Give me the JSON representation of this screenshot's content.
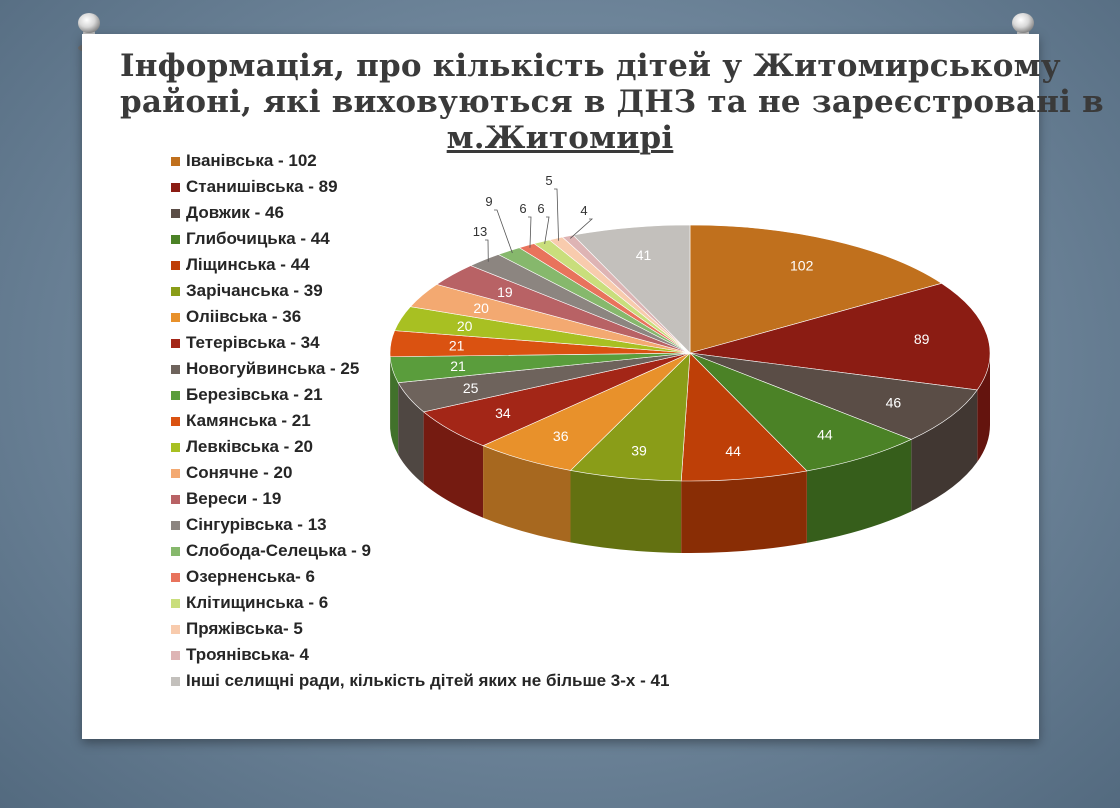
{
  "chart_data": {
    "type": "pie",
    "title": "Інформація, про кількість дітей у Житомирському районі, які виховуються в ДНЗ та не зареєстровані в м.Житомирі",
    "title_lines": [
      "Інформація, про кількість дітей у Житомирському",
      "районі, які виховуються в ДНЗ та не зареєстровані в"
    ],
    "title_city": "м.Житомирі",
    "legend_position": "left",
    "slices": [
      {
        "name": "Іванівська",
        "legend": "Іванівська - 102",
        "value": 102,
        "color": "#c0701d"
      },
      {
        "name": "Станишівська",
        "legend": "Станишівська - 89",
        "value": 89,
        "color": "#8b1c13"
      },
      {
        "name": "Довжик",
        "legend": "Довжик - 46",
        "value": 46,
        "color": "#5a4d46"
      },
      {
        "name": "Глибочицька",
        "legend": "Глибочицька - 44",
        "value": 44,
        "color": "#4b8226"
      },
      {
        "name": "Ліщинська",
        "legend": "Ліщинська - 44",
        "value": 44,
        "color": "#be3f07"
      },
      {
        "name": "Зарічанська",
        "legend": "Зарічанська - 39",
        "value": 39,
        "color": "#8a9d18"
      },
      {
        "name": "Оліівська",
        "legend": "Оліівська - 36",
        "value": 36,
        "color": "#e8912b"
      },
      {
        "name": "Тетерівська",
        "legend": "Тетерівська - 34",
        "value": 34,
        "color": "#a32617"
      },
      {
        "name": "Новогуйвинська",
        "legend": "Новогуйвинська - 25",
        "value": 25,
        "color": "#6e635c"
      },
      {
        "name": "Березівська",
        "legend": "Березівська - 21",
        "value": 21,
        "color": "#5a9d3c"
      },
      {
        "name": "Камянська",
        "legend": "Камянська - 21",
        "value": 21,
        "color": "#da5211"
      },
      {
        "name": "Левківська",
        "legend": "Левківська - 20",
        "value": 20,
        "color": "#a8c022"
      },
      {
        "name": "Сонячне",
        "legend": "Сонячне - 20",
        "value": 20,
        "color": "#f3a971"
      },
      {
        "name": "Вереси",
        "legend": "Вереси - 19",
        "value": 19,
        "color": "#b86265"
      },
      {
        "name": "Сінгурівська",
        "legend": "Сінгурівська - 13",
        "value": 13,
        "color": "#8c8580"
      },
      {
        "name": "Слобода-Селецька",
        "legend": "Слобода-Селецька - 9",
        "value": 9,
        "color": "#86b86c"
      },
      {
        "name": "Озерненська",
        "legend": "Озерненська- 6",
        "value": 6,
        "color": "#e8735c"
      },
      {
        "name": "Клітищинська",
        "legend": "Клітищинська - 6",
        "value": 6,
        "color": "#c9de7c"
      },
      {
        "name": "Пряжівська",
        "legend": "Пряжівська- 5",
        "value": 5,
        "color": "#f8cbad"
      },
      {
        "name": "Троянівська",
        "legend": "Троянівська- 4",
        "value": 4,
        "color": "#deb4b4"
      },
      {
        "name": "Інші селищні ради",
        "legend": "Інші  селищні ради, кількість дітей яких не більше 3-х - 41",
        "value": 41,
        "color": "#c3c0bc"
      }
    ]
  }
}
